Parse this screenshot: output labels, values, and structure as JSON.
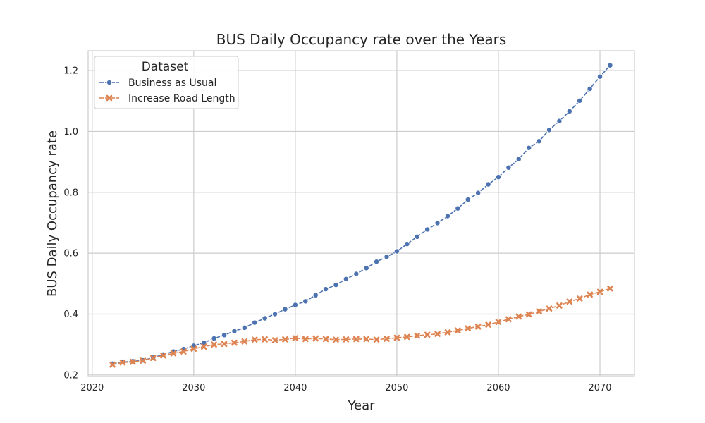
{
  "chart_data": {
    "type": "line",
    "title": "BUS Daily Occupancy rate over the Years",
    "xlabel": "Year",
    "ylabel": "BUS Daily Occupancy rate",
    "xlim": [
      2019.6,
      2073.4
    ],
    "ylim": [
      0.195,
      1.265
    ],
    "x_ticks": [
      2020,
      2030,
      2040,
      2050,
      2060,
      2070
    ],
    "y_ticks": [
      0.2,
      0.4,
      0.6,
      0.8,
      1.0,
      1.2
    ],
    "x_tick_labels": [
      "2020",
      "2030",
      "2040",
      "2050",
      "2060",
      "2070"
    ],
    "y_tick_labels": [
      "0.2",
      "0.4",
      "0.6",
      "0.8",
      "1.0",
      "1.2"
    ],
    "grid": true,
    "legend": {
      "title": "Dataset",
      "placement": "upper-left"
    },
    "x": [
      2022,
      2023,
      2024,
      2025,
      2026,
      2027,
      2028,
      2029,
      2030,
      2031,
      2032,
      2033,
      2034,
      2035,
      2036,
      2037,
      2038,
      2039,
      2040,
      2041,
      2042,
      2043,
      2044,
      2045,
      2046,
      2047,
      2048,
      2049,
      2050,
      2051,
      2052,
      2053,
      2054,
      2055,
      2056,
      2057,
      2058,
      2059,
      2060,
      2061,
      2062,
      2063,
      2064,
      2065,
      2066,
      2067,
      2068,
      2069,
      2070,
      2071
    ],
    "series": [
      {
        "name": "Business as Usual",
        "color": "#4c72b0",
        "marker": "circle",
        "values": [
          0.237,
          0.242,
          0.245,
          0.248,
          0.257,
          0.267,
          0.277,
          0.285,
          0.296,
          0.306,
          0.32,
          0.331,
          0.344,
          0.355,
          0.372,
          0.386,
          0.4,
          0.416,
          0.43,
          0.442,
          0.462,
          0.482,
          0.496,
          0.515,
          0.532,
          0.551,
          0.572,
          0.588,
          0.606,
          0.63,
          0.654,
          0.678,
          0.699,
          0.722,
          0.747,
          0.776,
          0.798,
          0.826,
          0.85,
          0.881,
          0.909,
          0.946,
          0.968,
          1.005,
          1.034,
          1.066,
          1.101,
          1.14,
          1.18,
          1.217
        ]
      },
      {
        "name": "Increase Road Length",
        "color": "#dd8452",
        "marker": "x",
        "values": [
          0.234,
          0.241,
          0.243,
          0.247,
          0.256,
          0.264,
          0.271,
          0.277,
          0.286,
          0.293,
          0.3,
          0.302,
          0.306,
          0.31,
          0.316,
          0.317,
          0.314,
          0.317,
          0.321,
          0.318,
          0.32,
          0.318,
          0.316,
          0.317,
          0.318,
          0.318,
          0.316,
          0.319,
          0.322,
          0.325,
          0.329,
          0.332,
          0.335,
          0.34,
          0.346,
          0.353,
          0.359,
          0.365,
          0.374,
          0.383,
          0.392,
          0.399,
          0.409,
          0.418,
          0.428,
          0.441,
          0.451,
          0.464,
          0.473,
          0.484
        ]
      }
    ]
  }
}
